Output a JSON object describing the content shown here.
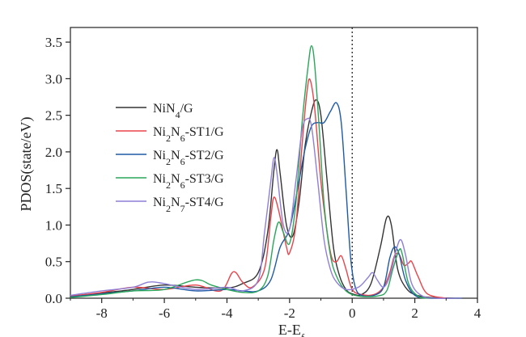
{
  "chart_data": {
    "type": "line",
    "xlabel": {
      "main": "E-E",
      "sub": "f"
    },
    "ylabel": "PDOS(state/eV)",
    "xlim": [
      -9,
      4
    ],
    "ylim": [
      0,
      3.7
    ],
    "x_ticks": [
      -8,
      -6,
      -4,
      -2,
      0,
      2,
      4
    ],
    "x_tick_labels": [
      "-8",
      "-6",
      "-4",
      "-2",
      "0",
      "2",
      "4"
    ],
    "y_ticks": [
      0.0,
      0.5,
      1.0,
      1.5,
      2.0,
      2.5,
      3.0,
      3.5
    ],
    "y_tick_labels": [
      "0.0",
      "0.5",
      "1.0",
      "1.5",
      "2.0",
      "2.5",
      "3.0",
      "3.5"
    ],
    "fermi_line_x": 0,
    "legend_position": "center-left",
    "grid": false,
    "series": [
      {
        "name": [
          {
            "t": "NiN"
          },
          {
            "t": "4",
            "sub": true
          },
          {
            "t": "/G"
          }
        ],
        "color": "#333333",
        "points": [
          [
            -9,
            0.02
          ],
          [
            -8,
            0.07
          ],
          [
            -7,
            0.12
          ],
          [
            -6,
            0.18
          ],
          [
            -5,
            0.15
          ],
          [
            -4,
            0.14
          ],
          [
            -3.5,
            0.2
          ],
          [
            -3,
            0.35
          ],
          [
            -2.7,
            0.9
          ],
          [
            -2.5,
            1.75
          ],
          [
            -2.4,
            2.03
          ],
          [
            -2.3,
            1.7
          ],
          [
            -2.1,
            1.0
          ],
          [
            -1.9,
            0.85
          ],
          [
            -1.7,
            1.3
          ],
          [
            -1.5,
            2.1
          ],
          [
            -1.3,
            2.55
          ],
          [
            -1.15,
            2.71
          ],
          [
            -1.0,
            2.5
          ],
          [
            -0.8,
            1.6
          ],
          [
            -0.6,
            0.7
          ],
          [
            -0.4,
            0.3
          ],
          [
            -0.2,
            0.12
          ],
          [
            0,
            0.06
          ],
          [
            0.3,
            0.05
          ],
          [
            0.6,
            0.2
          ],
          [
            0.9,
            0.7
          ],
          [
            1.1,
            1.1
          ],
          [
            1.25,
            1.0
          ],
          [
            1.45,
            0.4
          ],
          [
            1.7,
            0.15
          ],
          [
            2.0,
            0.05
          ],
          [
            2.5,
            0.01
          ],
          [
            3.5,
            0
          ]
        ]
      },
      {
        "name": [
          {
            "t": "Ni"
          },
          {
            "t": "2",
            "sub": true
          },
          {
            "t": "N"
          },
          {
            "t": "6",
            "sub": true
          },
          {
            "t": "-ST1/G"
          }
        ],
        "color": "#e8434a",
        "points": [
          [
            -9,
            0.03
          ],
          [
            -8,
            0.08
          ],
          [
            -7,
            0.15
          ],
          [
            -6,
            0.12
          ],
          [
            -5,
            0.18
          ],
          [
            -4.2,
            0.1
          ],
          [
            -3.8,
            0.36
          ],
          [
            -3.5,
            0.22
          ],
          [
            -3.2,
            0.15
          ],
          [
            -2.8,
            0.4
          ],
          [
            -2.6,
            1.1
          ],
          [
            -2.5,
            1.38
          ],
          [
            -2.35,
            1.2
          ],
          [
            -2.1,
            0.7
          ],
          [
            -2.0,
            0.62
          ],
          [
            -1.8,
            1.0
          ],
          [
            -1.6,
            2.1
          ],
          [
            -1.45,
            2.8
          ],
          [
            -1.35,
            2.99
          ],
          [
            -1.2,
            2.6
          ],
          [
            -1.0,
            1.6
          ],
          [
            -0.8,
            0.9
          ],
          [
            -0.65,
            0.55
          ],
          [
            -0.5,
            0.5
          ],
          [
            -0.35,
            0.58
          ],
          [
            -0.2,
            0.4
          ],
          [
            0,
            0.12
          ],
          [
            0.3,
            0.05
          ],
          [
            0.7,
            0.05
          ],
          [
            1.0,
            0.15
          ],
          [
            1.2,
            0.35
          ],
          [
            1.35,
            0.58
          ],
          [
            1.5,
            0.6
          ],
          [
            1.65,
            0.45
          ],
          [
            1.8,
            0.48
          ],
          [
            1.9,
            0.5
          ],
          [
            2.1,
            0.3
          ],
          [
            2.4,
            0.06
          ],
          [
            3,
            0
          ]
        ]
      },
      {
        "name": [
          {
            "t": "Ni"
          },
          {
            "t": "2",
            "sub": true
          },
          {
            "t": "N"
          },
          {
            "t": "6",
            "sub": true
          },
          {
            "t": "-ST2/G"
          }
        ],
        "color": "#1f5aa6",
        "points": [
          [
            -9,
            0.02
          ],
          [
            -8,
            0.06
          ],
          [
            -7,
            0.1
          ],
          [
            -6,
            0.15
          ],
          [
            -5,
            0.1
          ],
          [
            -4,
            0.12
          ],
          [
            -3.5,
            0.1
          ],
          [
            -3,
            0.1
          ],
          [
            -2.6,
            0.25
          ],
          [
            -2.3,
            0.7
          ],
          [
            -2.0,
            0.95
          ],
          [
            -1.7,
            1.6
          ],
          [
            -1.5,
            2.05
          ],
          [
            -1.3,
            2.35
          ],
          [
            -1.1,
            2.4
          ],
          [
            -0.9,
            2.4
          ],
          [
            -0.7,
            2.55
          ],
          [
            -0.5,
            2.67
          ],
          [
            -0.35,
            2.4
          ],
          [
            -0.2,
            1.5
          ],
          [
            -0.05,
            0.55
          ],
          [
            0.1,
            0.15
          ],
          [
            0.3,
            0.04
          ],
          [
            0.7,
            0.04
          ],
          [
            1.0,
            0.15
          ],
          [
            1.2,
            0.55
          ],
          [
            1.35,
            0.7
          ],
          [
            1.5,
            0.6
          ],
          [
            1.7,
            0.25
          ],
          [
            2.0,
            0.04
          ],
          [
            2.5,
            0
          ],
          [
            3.5,
            0
          ]
        ]
      },
      {
        "name": [
          {
            "t": "Ni"
          },
          {
            "t": "2",
            "sub": true
          },
          {
            "t": "N"
          },
          {
            "t": "6",
            "sub": true
          },
          {
            "t": "-ST3/G"
          }
        ],
        "color": "#2aa65a",
        "points": [
          [
            -9,
            0.01
          ],
          [
            -8,
            0.05
          ],
          [
            -7,
            0.1
          ],
          [
            -6,
            0.12
          ],
          [
            -5,
            0.25
          ],
          [
            -4.5,
            0.18
          ],
          [
            -4,
            0.12
          ],
          [
            -3.5,
            0.08
          ],
          [
            -3,
            0.1
          ],
          [
            -2.7,
            0.3
          ],
          [
            -2.5,
            0.8
          ],
          [
            -2.35,
            1.04
          ],
          [
            -2.2,
            0.9
          ],
          [
            -2.0,
            0.75
          ],
          [
            -1.8,
            1.3
          ],
          [
            -1.6,
            2.4
          ],
          [
            -1.4,
            3.2
          ],
          [
            -1.3,
            3.45
          ],
          [
            -1.2,
            3.2
          ],
          [
            -1.05,
            2.3
          ],
          [
            -0.9,
            1.3
          ],
          [
            -0.7,
            0.6
          ],
          [
            -0.5,
            0.3
          ],
          [
            -0.2,
            0.1
          ],
          [
            0.2,
            0.03
          ],
          [
            0.8,
            0.03
          ],
          [
            1.1,
            0.1
          ],
          [
            1.3,
            0.4
          ],
          [
            1.5,
            0.66
          ],
          [
            1.6,
            0.6
          ],
          [
            1.8,
            0.2
          ],
          [
            2.1,
            0.03
          ],
          [
            2.5,
            0
          ],
          [
            3.5,
            0
          ]
        ]
      },
      {
        "name": [
          {
            "t": "Ni"
          },
          {
            "t": "2",
            "sub": true
          },
          {
            "t": "N"
          },
          {
            "t": "7",
            "sub": true
          },
          {
            "t": "-ST4/G"
          }
        ],
        "color": "#8f7fd6",
        "points": [
          [
            -9,
            0.04
          ],
          [
            -8,
            0.1
          ],
          [
            -7,
            0.15
          ],
          [
            -6.5,
            0.22
          ],
          [
            -6,
            0.2
          ],
          [
            -5,
            0.12
          ],
          [
            -4,
            0.15
          ],
          [
            -3.5,
            0.1
          ],
          [
            -3,
            0.25
          ],
          [
            -2.8,
            0.9
          ],
          [
            -2.6,
            1.6
          ],
          [
            -2.5,
            1.92
          ],
          [
            -2.4,
            1.7
          ],
          [
            -2.2,
            1.0
          ],
          [
            -2.0,
            0.95
          ],
          [
            -1.8,
            1.6
          ],
          [
            -1.6,
            2.3
          ],
          [
            -1.45,
            2.45
          ],
          [
            -1.3,
            2.35
          ],
          [
            -1.1,
            1.6
          ],
          [
            -0.9,
            0.8
          ],
          [
            -0.7,
            0.4
          ],
          [
            -0.5,
            0.22
          ],
          [
            -0.2,
            0.12
          ],
          [
            0.2,
            0.15
          ],
          [
            0.5,
            0.28
          ],
          [
            0.65,
            0.35
          ],
          [
            0.8,
            0.25
          ],
          [
            1.0,
            0.15
          ],
          [
            1.2,
            0.3
          ],
          [
            1.4,
            0.65
          ],
          [
            1.55,
            0.8
          ],
          [
            1.7,
            0.6
          ],
          [
            1.9,
            0.2
          ],
          [
            2.2,
            0.04
          ],
          [
            2.6,
            0
          ],
          [
            3.5,
            0
          ]
        ]
      }
    ]
  }
}
